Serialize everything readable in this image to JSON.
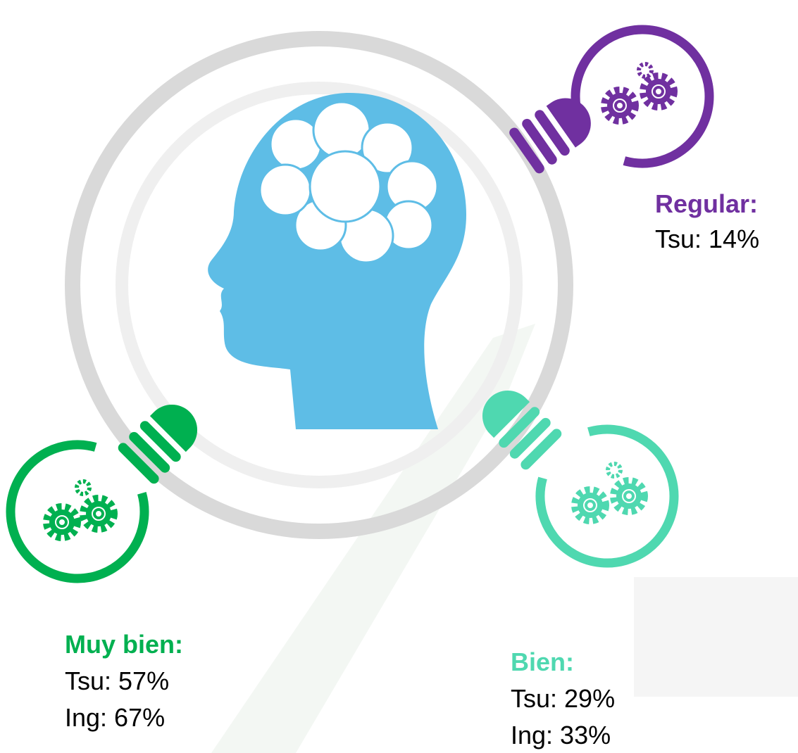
{
  "items": [
    {
      "title": "Regular:",
      "lines": [
        "Tsu: 14%"
      ]
    },
    {
      "title": "Muy bien:",
      "lines": [
        "Tsu: 57%",
        "Ing: 67%"
      ]
    },
    {
      "title": "Bien:",
      "lines": [
        "Tsu: 29%",
        "Ing: 33%"
      ]
    }
  ]
}
